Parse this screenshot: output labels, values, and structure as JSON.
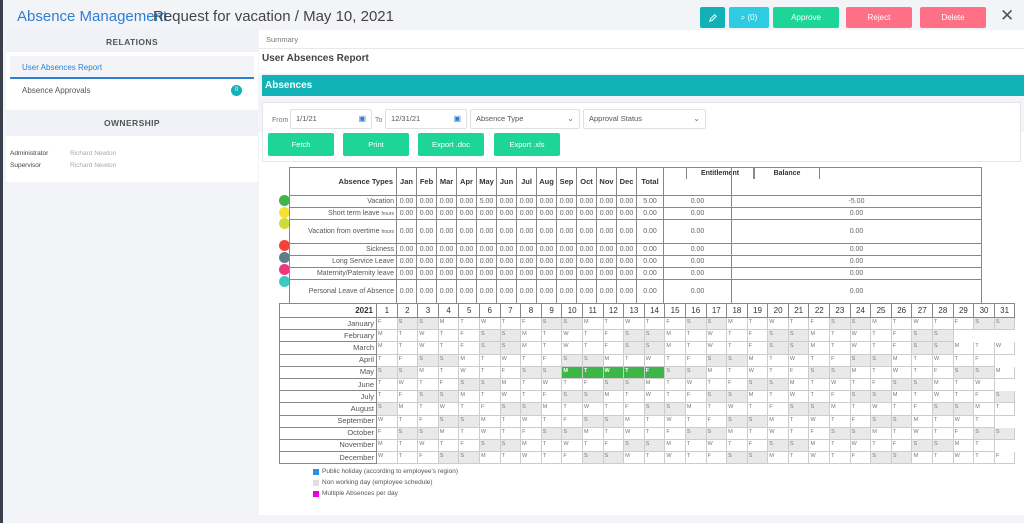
{
  "header": {
    "app_title": "Absence Management",
    "record_title": "Request for vacation / May 10, 2021",
    "buttons": {
      "edit_icon": "pencil-icon",
      "comments_label": "⌕ (0)",
      "comments_count": 0,
      "approve": "Approve",
      "reject": "Reject",
      "delete": "Delete",
      "close": "✕"
    },
    "colors": {
      "edit": "#12b1b8",
      "comments": "#2ecbe2",
      "approve": "#1ed598",
      "reject": "#fe7086",
      "delete": "#fe7086"
    }
  },
  "sidebar": {
    "relations_title": "RELATIONS",
    "relations": [
      {
        "label": "User Absences Report",
        "active": true
      },
      {
        "label": "Absence Approvals",
        "badge": "0"
      }
    ],
    "ownership_title": "OWNERSHIP",
    "ownership": [
      {
        "label": "Administrator",
        "value": "Richard Newton"
      },
      {
        "label": "Supervisor",
        "value": "Richard Newton"
      }
    ]
  },
  "main": {
    "tab": "Summary",
    "report_title": "User Absences Report",
    "section_title": "Absences",
    "filters": {
      "from_label": "From",
      "from_value": "1/1/21",
      "to_label": "To",
      "to_value": "12/31/21",
      "absence_type": "Absence Type",
      "approval_status": "Approval Status",
      "calendar_icon": "📅",
      "chevron_icon": "⌄"
    },
    "actions": {
      "fetch": "Fetch",
      "print": "Print",
      "export_doc": "Export .doc",
      "export_xls": "Export .xls"
    }
  },
  "summary_table": {
    "headers": [
      "Absence Types",
      "Jan",
      "Feb",
      "Mar",
      "Apr",
      "May",
      "Jun",
      "Jul",
      "Aug",
      "Sep",
      "Oct",
      "Nov",
      "Dec",
      "Total"
    ],
    "entitlement_header": "Entitlement",
    "balance_header": "Balance",
    "rows": [
      {
        "type": "Vacation",
        "unit": "",
        "color": "#3db549",
        "months": [
          "0.00",
          "0.00",
          "0.00",
          "0.00",
          "5.00",
          "0.00",
          "0.00",
          "0.00",
          "0.00",
          "0.00",
          "0.00",
          "0.00"
        ],
        "total": "5.00",
        "entitlement": "0.00",
        "balance": "-5.00"
      },
      {
        "type": "Short term leave",
        "unit": "hours",
        "color": "#f8e133",
        "months": [
          "0.00",
          "0.00",
          "0.00",
          "0.00",
          "0.00",
          "0.00",
          "0.00",
          "0.00",
          "0.00",
          "0.00",
          "0.00",
          "0.00"
        ],
        "total": "0.00",
        "entitlement": "0.00",
        "balance": "0.00"
      },
      {
        "type": "Vacation from overtime",
        "unit": "hours",
        "color": "#cddc39",
        "months": [
          "0.00",
          "0.00",
          "0.00",
          "0.00",
          "0.00",
          "0.00",
          "0.00",
          "0.00",
          "0.00",
          "0.00",
          "0.00",
          "0.00"
        ],
        "total": "0.00",
        "entitlement": "0.00",
        "balance": "0.00",
        "tall": true
      },
      {
        "type": "Sickness",
        "unit": "",
        "color": "#f44336",
        "months": [
          "0.00",
          "0.00",
          "0.00",
          "0.00",
          "0.00",
          "0.00",
          "0.00",
          "0.00",
          "0.00",
          "0.00",
          "0.00",
          "0.00"
        ],
        "total": "0.00",
        "entitlement": "0.00",
        "balance": "0.00"
      },
      {
        "type": "Long Service Leave",
        "unit": "",
        "color": "#607d8b",
        "months": [
          "0.00",
          "0.00",
          "0.00",
          "0.00",
          "0.00",
          "0.00",
          "0.00",
          "0.00",
          "0.00",
          "0.00",
          "0.00",
          "0.00"
        ],
        "total": "0.00",
        "entitlement": "0.00",
        "balance": "0.00"
      },
      {
        "type": "Maternity/Paternity leave",
        "unit": "",
        "color": "#ee3a7a",
        "months": [
          "0.00",
          "0.00",
          "0.00",
          "0.00",
          "0.00",
          "0.00",
          "0.00",
          "0.00",
          "0.00",
          "0.00",
          "0.00",
          "0.00"
        ],
        "total": "0.00",
        "entitlement": "0.00",
        "balance": "0.00"
      },
      {
        "type": "Personal Leave of Absence",
        "unit": "",
        "color": "#3ec8be",
        "months": [
          "0.00",
          "0.00",
          "0.00",
          "0.00",
          "0.00",
          "0.00",
          "0.00",
          "0.00",
          "0.00",
          "0.00",
          "0.00",
          "0.00"
        ],
        "total": "0.00",
        "entitlement": "0.00",
        "balance": "0.00",
        "tall": true
      }
    ]
  },
  "calendar": {
    "year": "2021",
    "months": [
      "January",
      "February",
      "March",
      "April",
      "May",
      "June",
      "July",
      "August",
      "September",
      "October",
      "November",
      "December"
    ],
    "day_letters": [
      "S",
      "M",
      "T",
      "W",
      "T",
      "F",
      "S"
    ],
    "absence_days": [
      {
        "month": 5,
        "from": 10,
        "to": 14,
        "color": "#3db549"
      }
    ],
    "weekend_color": "#e9e9e9"
  },
  "legend": [
    {
      "label": "Public holiday (according to employee's region)",
      "color": "#2d8ee8"
    },
    {
      "label": "Non working day (employee schedule)",
      "color": "#e0e0e0"
    },
    {
      "label": "Multiple Absences per day",
      "color": "#ee00dd"
    }
  ]
}
